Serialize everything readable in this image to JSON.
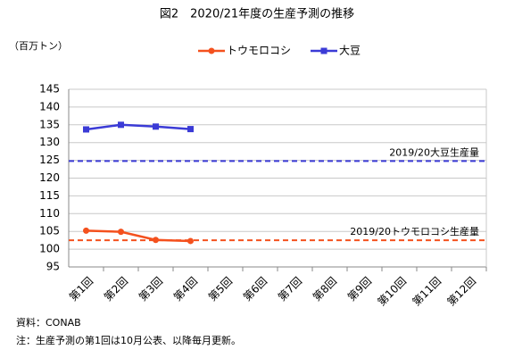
{
  "chart_data": {
    "type": "line",
    "title": "図2　2020/21年度の生産予測の推移",
    "y_label": "（百万トン）",
    "categories": [
      "第1回",
      "第2回",
      "第3回",
      "第4回",
      "第5回",
      "第6回",
      "第7回",
      "第8回",
      "第9回",
      "第10回",
      "第11回",
      "第12回"
    ],
    "series": [
      {
        "name": "トウモロコシ",
        "color": "#f4511e",
        "marker": "circle",
        "values": [
          105.2,
          104.9,
          102.6,
          102.3,
          null,
          null,
          null,
          null,
          null,
          null,
          null,
          null
        ]
      },
      {
        "name": "大豆",
        "color": "#3b3bd6",
        "marker": "square",
        "values": [
          133.7,
          135.0,
          134.5,
          133.8,
          null,
          null,
          null,
          null,
          null,
          null,
          null,
          null
        ]
      }
    ],
    "reference_lines": [
      {
        "label": "2019/20大豆生産量",
        "value": 124.8,
        "color": "#3b3bd6"
      },
      {
        "label": "2019/20トウモロコシ生産量",
        "value": 102.5,
        "color": "#f4511e"
      }
    ],
    "ylim": [
      95,
      145
    ],
    "yticks": [
      95,
      100,
      105,
      110,
      115,
      120,
      125,
      130,
      135,
      140,
      145
    ],
    "grid": true,
    "legend": "top",
    "notes": [
      "資料：CONAB",
      "注：生産予測の第1回は10月公表、以降毎月更新。"
    ]
  }
}
